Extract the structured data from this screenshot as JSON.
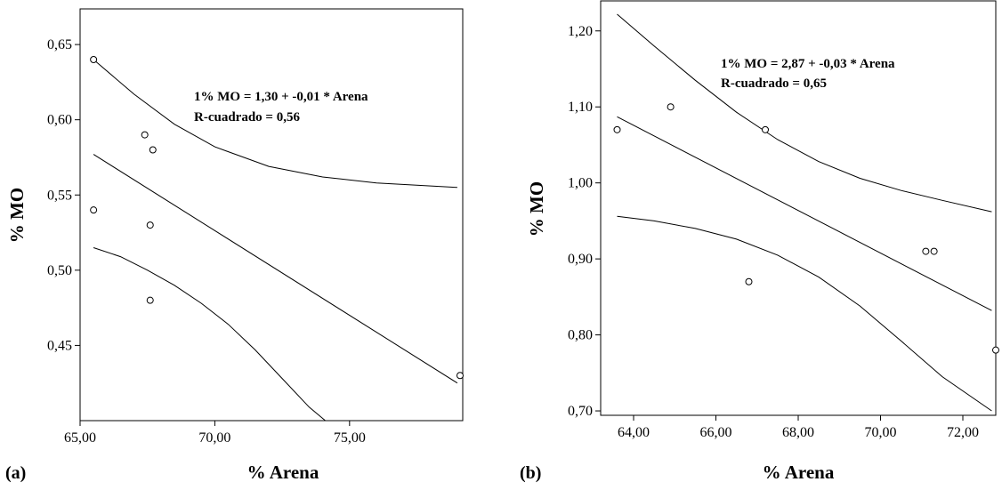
{
  "chart_data": [
    {
      "type": "scatter",
      "panel_label": "(a)",
      "xlabel": "% Arena",
      "ylabel": "% MO",
      "xlim": [
        65.0,
        79.2
      ],
      "ylim": [
        0.4,
        0.6737
      ],
      "x_ticks": [
        65,
        70,
        75
      ],
      "x_tick_labels": [
        "65,00",
        "70,00",
        "75,00"
      ],
      "y_ticks": [
        0.45,
        0.5,
        0.55,
        0.6,
        0.65
      ],
      "y_tick_labels": [
        "0,45",
        "0,50",
        "0,55",
        "0,60",
        "0,65"
      ],
      "annotation": [
        "1% MO = 1,30 + -0,01 * Arena",
        "R-cuadrado = 0,56"
      ],
      "grid": false,
      "points": [
        {
          "x": 65.5,
          "y": 0.64
        },
        {
          "x": 65.5,
          "y": 0.54
        },
        {
          "x": 67.4,
          "y": 0.59
        },
        {
          "x": 67.7,
          "y": 0.58
        },
        {
          "x": 67.6,
          "y": 0.53
        },
        {
          "x": 67.6,
          "y": 0.48
        },
        {
          "x": 79.1,
          "y": 0.43
        }
      ],
      "fit_line": {
        "x": [
          65.5,
          79.0
        ],
        "y": [
          0.577,
          0.425
        ]
      },
      "upper_band": {
        "x": [
          65.5,
          67.0,
          68.5,
          70.0,
          72.0,
          74.0,
          76.0,
          79.0
        ],
        "y": [
          0.64,
          0.617,
          0.597,
          0.582,
          0.569,
          0.562,
          0.558,
          0.555
        ]
      },
      "lower_band": {
        "x": [
          65.5,
          66.5,
          67.5,
          68.5,
          69.5,
          70.5,
          71.5,
          72.5,
          73.5,
          74.1
        ],
        "y": [
          0.515,
          0.509,
          0.5,
          0.49,
          0.478,
          0.464,
          0.447,
          0.428,
          0.409,
          0.4
        ]
      }
    },
    {
      "type": "scatter",
      "panel_label": "(b)",
      "xlabel": "% Arena",
      "ylabel": "% MO",
      "xlim": [
        63.2,
        72.8
      ],
      "ylim": [
        0.6942,
        1.2395
      ],
      "x_ticks": [
        64,
        66,
        68,
        70,
        72
      ],
      "x_tick_labels": [
        "64,00",
        "66,00",
        "68,00",
        "70,00",
        "72,00"
      ],
      "y_ticks": [
        0.7,
        0.8,
        0.9,
        1.0,
        1.1,
        1.2
      ],
      "y_tick_labels": [
        "0,70",
        "0,80",
        "0,90",
        "1,00",
        "1,10",
        "1,20"
      ],
      "annotation": [
        "1% MO = 2,87 + -0,03 * Arena",
        "R-cuadrado = 0,65"
      ],
      "grid": false,
      "points": [
        {
          "x": 63.6,
          "y": 1.07
        },
        {
          "x": 64.9,
          "y": 1.1
        },
        {
          "x": 67.2,
          "y": 1.07
        },
        {
          "x": 66.8,
          "y": 0.87
        },
        {
          "x": 71.1,
          "y": 0.91
        },
        {
          "x": 71.3,
          "y": 0.91
        },
        {
          "x": 72.8,
          "y": 0.78
        }
      ],
      "fit_line": {
        "x": [
          63.6,
          72.7
        ],
        "y": [
          1.087,
          0.832
        ]
      },
      "upper_band": {
        "x": [
          63.6,
          64.5,
          65.5,
          66.5,
          67.5,
          68.5,
          69.5,
          70.5,
          71.5,
          72.7
        ],
        "y": [
          1.222,
          1.18,
          1.135,
          1.093,
          1.057,
          1.028,
          1.006,
          0.99,
          0.977,
          0.962
        ]
      },
      "lower_band": {
        "x": [
          63.6,
          64.5,
          65.5,
          66.5,
          67.5,
          68.5,
          69.5,
          70.5,
          71.5,
          72.7
        ],
        "y": [
          0.956,
          0.95,
          0.94,
          0.926,
          0.905,
          0.876,
          0.838,
          0.792,
          0.745,
          0.7
        ]
      }
    }
  ]
}
